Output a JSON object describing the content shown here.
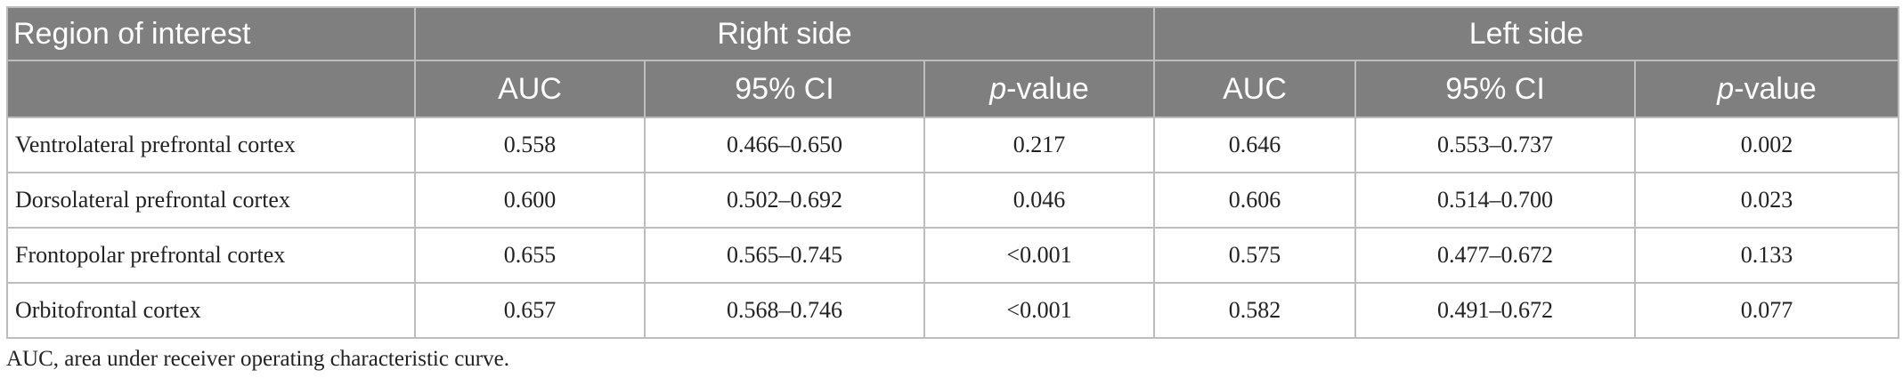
{
  "table": {
    "header": {
      "region": "Region of interest",
      "right_side": "Right side",
      "left_side": "Left side",
      "cols": [
        {
          "text": "AUC",
          "italic_prefix": ""
        },
        {
          "text": "95% CI",
          "italic_prefix": ""
        },
        {
          "text": "-value",
          "italic_prefix": "p"
        },
        {
          "text": "AUC",
          "italic_prefix": ""
        },
        {
          "text": "95% CI",
          "italic_prefix": ""
        },
        {
          "text": "-value",
          "italic_prefix": "p"
        }
      ]
    },
    "rows": [
      {
        "label": "Ventrolateral prefrontal cortex",
        "right_auc": "0.558",
        "right_ci": "0.466–0.650",
        "right_p": "0.217",
        "left_auc": "0.646",
        "left_ci": "0.553–0.737",
        "left_p": "0.002"
      },
      {
        "label": "Dorsolateral prefrontal cortex",
        "right_auc": "0.600",
        "right_ci": "0.502–0.692",
        "right_p": "0.046",
        "left_auc": "0.606",
        "left_ci": "0.514–0.700",
        "left_p": "0.023"
      },
      {
        "label": "Frontopolar prefrontal cortex",
        "right_auc": "0.655",
        "right_ci": "0.565–0.745",
        "right_p": "<0.001",
        "left_auc": "0.575",
        "left_ci": "0.477–0.672",
        "left_p": "0.133"
      },
      {
        "label": "Orbitofrontal cortex",
        "right_auc": "0.657",
        "right_ci": "0.568–0.746",
        "right_p": "<0.001",
        "left_auc": "0.582",
        "left_ci": "0.491–0.672",
        "left_p": "0.077"
      }
    ]
  },
  "footnote": "AUC, area under receiver operating characteristic curve."
}
